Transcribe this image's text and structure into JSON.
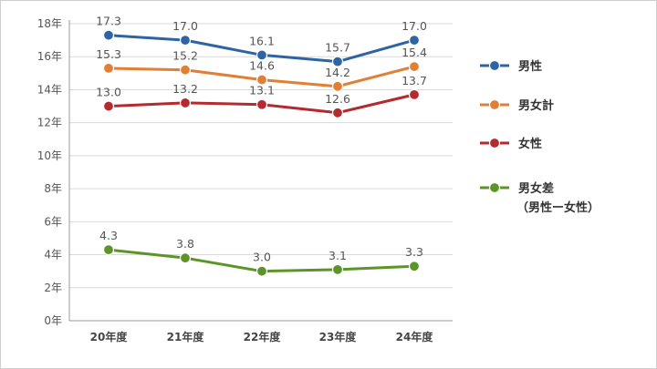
{
  "chart_data": {
    "type": "line",
    "categories": [
      "20年度",
      "21年度",
      "22年度",
      "23年度",
      "24年度"
    ],
    "ylim": [
      0,
      18
    ],
    "yticks": [
      "0年",
      "2年",
      "4年",
      "6年",
      "8年",
      "10年",
      "12年",
      "14年",
      "16年",
      "18年"
    ],
    "ytick_values": [
      0,
      2,
      4,
      6,
      8,
      10,
      12,
      14,
      16,
      18
    ],
    "grid": true,
    "legend_position": "right",
    "series": [
      {
        "name": "男性",
        "color": "#2e64a3",
        "values": [
          17.3,
          17.0,
          16.1,
          15.7,
          17.0
        ],
        "labels": [
          "17.3",
          "17.0",
          "16.1",
          "15.7",
          "17.0"
        ]
      },
      {
        "name": "男女計",
        "color": "#e07f35",
        "values": [
          15.3,
          15.2,
          14.6,
          14.2,
          15.4
        ],
        "labels": [
          "15.3",
          "15.2",
          "14.6",
          "14.2",
          "15.4"
        ]
      },
      {
        "name": "女性",
        "color": "#b52a2f",
        "values": [
          13.0,
          13.2,
          13.1,
          12.6,
          13.7
        ],
        "labels": [
          "13.0",
          "13.2",
          "13.1",
          "12.6",
          "13.7"
        ]
      },
      {
        "name": "男女差",
        "name_line2": "（男性ー女性）",
        "color": "#5d9428",
        "values": [
          4.3,
          3.8,
          3.0,
          3.1,
          3.3
        ],
        "labels": [
          "4.3",
          "3.8",
          "3.0",
          "3.1",
          "3.3"
        ]
      }
    ]
  }
}
